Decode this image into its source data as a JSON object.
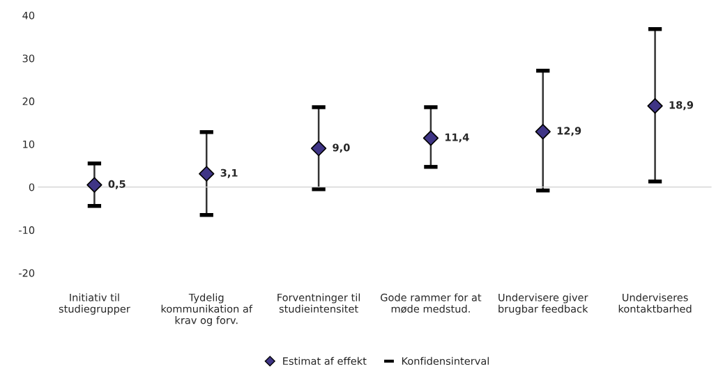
{
  "chart_data": {
    "type": "scatter",
    "categories": [
      "Initiativ til\nstudiegrupper",
      "Tydelig\nkommunikation af\nkrav og forv.",
      "Forventninger til\nstudieintensitet",
      "Gode rammer for at\nmøde medstud.",
      "Undervisere giver\nbrugbar feedback",
      "Underviseres\nkontaktbarhed"
    ],
    "series": [
      {
        "name": "Estimat af effekt",
        "color": "#3f3586",
        "values": [
          0.5,
          3.1,
          9.0,
          11.4,
          12.9,
          18.9
        ],
        "errors": [
          [
            -4.4,
            5.5
          ],
          [
            -6.5,
            12.8
          ],
          [
            -0.5,
            18.6
          ],
          [
            4.7,
            18.6
          ],
          [
            -0.8,
            27.1
          ],
          [
            1.3,
            36.8
          ]
        ],
        "value_labels": [
          "0,5",
          "3,1",
          "9,0",
          "11,4",
          "12,9",
          "18,9"
        ]
      }
    ],
    "annotations": [
      "Konfidensinterval"
    ],
    "marker": "diamond",
    "ylim": [
      -20,
      40
    ],
    "yticks": [
      -20,
      -10,
      0,
      10,
      20,
      30,
      40
    ],
    "legend": "bottom"
  }
}
